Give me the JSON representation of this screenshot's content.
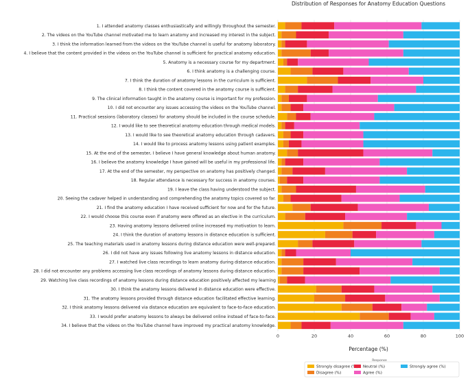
{
  "chart_data": {
    "type": "bar",
    "orientation": "horizontal",
    "stacked": true,
    "title": "Distribution of Responses for Anatomy Education Questions",
    "xlabel": "Percentage (%)",
    "ylabel": "",
    "xlim": [
      0,
      100
    ],
    "xticks": [
      "0",
      "20",
      "40",
      "60",
      "80",
      "100"
    ],
    "grid": true,
    "legend": {
      "title": "Response",
      "position": "bottom-right"
    },
    "categories": [
      "1. I attended anatomy classes enthusiastically and willingly throughout the semester.",
      "2. The videos on the YouTube channel motivated me to learn anatomy and increased my interest in the subject.",
      "3. I think the information learned from the videos on the YouTube channel is useful for anatomy laboratory.",
      "4. I believe that the content provided in the videos on the YouTube channel is sufficient for practical anatomy education.",
      "5. Anatomy is a necessary course for my department.",
      "6. I think anatomy is a challenging course.",
      "7. I think the duration of anatomy lessons in the curriculum is sufficient.",
      "8. I think the content covered in the anatomy course is sufficient.",
      "9. The clinical information taught in the anatomy course is important for my profession.",
      "10. I did not encounter any issues accessing the videos on the YouTube channel.",
      "11. Practical sessions (laboratory classes) for anatomy should be included in the course schedule.",
      "12. I would like to see theoretical anatomy education through medical models.",
      "13. I would like to see theoretical anatomy education through cadavers.",
      "14. I would like to process anatomy lessons using patient examples.",
      "15. At the end of the semester, I believe I have general knowledge about human anatomy.",
      "16. I believe the anatomy knowledge I have gained will be useful in my professional life.",
      "17. At the end of the semester, my perspective on anatomy has positively changed.",
      "18. Regular attendance is necessary for success in anatomy courses.",
      "19. I leave the class having understood the subject.",
      "20. Seeing the cadaver helped in understanding and comprehending the anatomy topics covered so far.",
      "21. I find the anatomy education I have received sufficient for now and for the future.",
      "22. I would choose this course even if anatomy were offered as an elective in the curriculum.",
      "23. Having anatomy lessons delivered online increased my motivation to learn.",
      "24. I think the duration of anatomy lessons in distance education is sufficient.",
      "25. The teaching materials used in anatomy lessons during distance education were well-prepared.",
      "26. I did not have any issues following live anatomy lessons in distance education.",
      "27. I watched live class recordings to learn anatomy during distance education.",
      "28. I did not encounter any problems accessing live class recordings of anatomy lessons during distance education.",
      "29. Watching live class recordings of anatomy lessons during distance education positively affected my learning",
      "30. I think the anatomy lessons delivered in distance education were effective.",
      "31. The anatomy lessons provided through distance education facilitated effective learning.",
      "32. I think anatomy lessons delivered via distance education are equivalent to face-to-face education.",
      "33. I would prefer anatomy lessons to always be delivered online instead of face-to-face.",
      "34. I believe that the videos on the YouTube channel have improved my practical anatomy knowledge."
    ],
    "series": [
      {
        "name": "Strongly disagree (%)",
        "color": "#f5b301",
        "values": [
          4,
          2,
          2,
          2,
          3,
          7,
          16,
          4,
          2,
          2,
          5,
          2,
          3,
          3,
          5,
          2,
          2,
          1,
          2,
          3,
          8,
          4,
          36,
          26,
          11,
          2,
          2,
          2,
          1,
          21,
          20,
          35,
          45,
          7
        ]
      },
      {
        "name": "Disagree (%)",
        "color": "#f07f1e",
        "values": [
          9,
          8,
          2,
          16,
          2,
          12,
          17,
          7,
          4,
          5,
          5,
          2,
          4,
          3,
          6,
          2,
          6,
          4,
          8,
          4,
          10,
          11,
          21,
          15,
          8,
          2,
          12,
          12,
          4,
          14,
          17,
          17,
          16,
          6
        ]
      },
      {
        "name": "Neutral (%)",
        "color": "#e8253f",
        "values": [
          18,
          18,
          12,
          10,
          6,
          17,
          18,
          19,
          10,
          7,
          8,
          5,
          7,
          7,
          36,
          10,
          18,
          9,
          33,
          28,
          26,
          22,
          19,
          13,
          23,
          6,
          18,
          31,
          10,
          18,
          22,
          16,
          12,
          16
        ]
      },
      {
        "name": "Agree (%)",
        "color": "#f25bbf",
        "values": [
          48,
          41,
          45,
          41,
          39,
          36,
          29,
          46,
          39,
          50,
          35,
          36,
          33,
          34,
          38,
          42,
          45,
          42,
          38,
          32,
          39,
          34,
          14,
          32,
          37,
          30,
          42,
          44,
          47,
          32,
          30,
          14,
          13,
          40
        ]
      },
      {
        "name": "Strongly agree (%)",
        "color": "#2cb5ec",
        "values": [
          21,
          31,
          39,
          31,
          50,
          28,
          20,
          24,
          45,
          36,
          47,
          55,
          53,
          53,
          15,
          44,
          29,
          44,
          19,
          33,
          17,
          29,
          10,
          14,
          21,
          60,
          26,
          11,
          38,
          15,
          11,
          18,
          14,
          31
        ]
      }
    ]
  }
}
